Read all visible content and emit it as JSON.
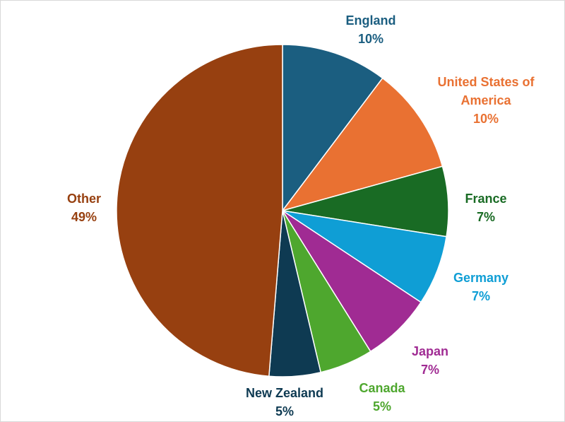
{
  "chart_data": {
    "type": "pie",
    "title": "",
    "start_angle_deg": 0,
    "direction": "clockwise",
    "slices": [
      {
        "name": "England",
        "label_lines": [
          "England"
        ],
        "pct_label": "10%",
        "value": 10.3,
        "color": "#1b5e80"
      },
      {
        "name": "United States of America",
        "label_lines": [
          "United States of",
          "America"
        ],
        "pct_label": "10%",
        "value": 10.4,
        "color": "#e97132"
      },
      {
        "name": "France",
        "label_lines": [
          "France"
        ],
        "pct_label": "7%",
        "value": 6.8,
        "color": "#196b24"
      },
      {
        "name": "Germany",
        "label_lines": [
          "Germany"
        ],
        "pct_label": "7%",
        "value": 6.8,
        "color": "#0f9ed5"
      },
      {
        "name": "Japan",
        "label_lines": [
          "Japan"
        ],
        "pct_label": "7%",
        "value": 6.8,
        "color": "#a02b93"
      },
      {
        "name": "Canada",
        "label_lines": [
          "Canada"
        ],
        "pct_label": "5%",
        "value": 5.2,
        "color": "#4ea72e"
      },
      {
        "name": "New Zealand",
        "label_lines": [
          "New Zealand"
        ],
        "pct_label": "5%",
        "value": 5.0,
        "color": "#0e3a52"
      },
      {
        "name": "Other",
        "label_lines": [
          "Other"
        ],
        "pct_label": "49%",
        "value": 48.7,
        "color": "#974010"
      }
    ]
  },
  "label_colors": {
    "England": "#1b5e80",
    "United States of America": "#e97132",
    "France": "#196b24",
    "Germany": "#0f9ed5",
    "Japan": "#a02b93",
    "Canada": "#4ea72e",
    "New Zealand": "#0e3a52",
    "Other": "#974010"
  }
}
